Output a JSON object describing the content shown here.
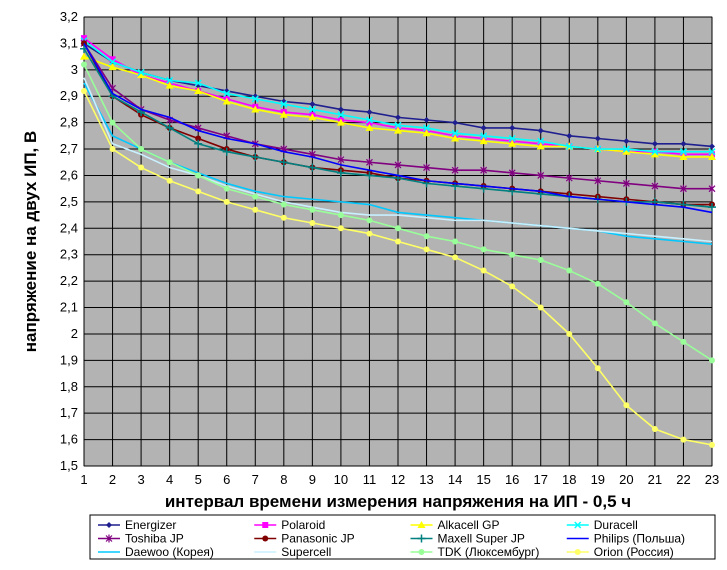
{
  "chart_data": {
    "type": "line",
    "title": "",
    "xlabel": "интервал времени измерения напряжения на ИП - 0,5 ч",
    "ylabel": "напряжение на двух ИП, В",
    "x": [
      1,
      2,
      3,
      4,
      5,
      6,
      7,
      8,
      9,
      10,
      11,
      12,
      13,
      14,
      15,
      16,
      17,
      18,
      19,
      20,
      21,
      22,
      23
    ],
    "xlim": [
      1,
      23
    ],
    "ylim": [
      1.5,
      3.2
    ],
    "yticks": [
      "1,5",
      "1,6",
      "1,7",
      "1,8",
      "1,9",
      "2",
      "2,1",
      "2,2",
      "2,3",
      "2,4",
      "2,5",
      "2,6",
      "2,7",
      "2,8",
      "2,9",
      "3",
      "3,1",
      "3,2"
    ],
    "grid": true,
    "plot_background": "#b3b3b3",
    "legend_position": "bottom",
    "series": [
      {
        "name": "Energizer",
        "color": "#1f1f8f",
        "marker": "diamond",
        "values": [
          3.1,
          3.03,
          2.99,
          2.96,
          2.94,
          2.92,
          2.9,
          2.88,
          2.87,
          2.85,
          2.84,
          2.82,
          2.81,
          2.8,
          2.78,
          2.78,
          2.77,
          2.75,
          2.74,
          2.73,
          2.72,
          2.72,
          2.71
        ]
      },
      {
        "name": "Polaroid",
        "color": "#ff00ff",
        "marker": "square",
        "values": [
          3.12,
          3.04,
          2.98,
          2.95,
          2.92,
          2.89,
          2.86,
          2.84,
          2.83,
          2.81,
          2.8,
          2.78,
          2.77,
          2.75,
          2.74,
          2.73,
          2.72,
          2.71,
          2.7,
          2.69,
          2.69,
          2.68,
          2.68
        ]
      },
      {
        "name": "Alkacell GP",
        "color": "#ffff00",
        "marker": "triangle",
        "values": [
          3.05,
          3.01,
          2.98,
          2.94,
          2.92,
          2.88,
          2.85,
          2.83,
          2.82,
          2.8,
          2.78,
          2.77,
          2.76,
          2.74,
          2.73,
          2.72,
          2.71,
          2.71,
          2.7,
          2.69,
          2.68,
          2.67,
          2.67
        ]
      },
      {
        "name": "Duracell",
        "color": "#00ffff",
        "marker": "x",
        "values": [
          3.11,
          3.03,
          2.99,
          2.96,
          2.95,
          2.91,
          2.89,
          2.87,
          2.85,
          2.83,
          2.81,
          2.79,
          2.78,
          2.76,
          2.75,
          2.74,
          2.73,
          2.71,
          2.7,
          2.7,
          2.69,
          2.69,
          2.69
        ]
      },
      {
        "name": "Toshiba JP",
        "color": "#800080",
        "marker": "star",
        "values": [
          3.1,
          2.93,
          2.85,
          2.81,
          2.78,
          2.75,
          2.72,
          2.7,
          2.68,
          2.66,
          2.65,
          2.64,
          2.63,
          2.62,
          2.62,
          2.61,
          2.6,
          2.59,
          2.58,
          2.57,
          2.56,
          2.55,
          2.55
        ]
      },
      {
        "name": "Panasonic JP",
        "color": "#800000",
        "marker": "circle",
        "values": [
          3.1,
          2.9,
          2.83,
          2.78,
          2.74,
          2.7,
          2.67,
          2.65,
          2.63,
          2.62,
          2.61,
          2.59,
          2.58,
          2.57,
          2.56,
          2.55,
          2.54,
          2.53,
          2.52,
          2.51,
          2.5,
          2.49,
          2.49
        ]
      },
      {
        "name": "Maxell Super JP",
        "color": "#008080",
        "marker": "plus",
        "values": [
          3.08,
          2.9,
          2.84,
          2.78,
          2.72,
          2.69,
          2.67,
          2.65,
          2.63,
          2.61,
          2.6,
          2.59,
          2.57,
          2.56,
          2.55,
          2.54,
          2.53,
          2.52,
          2.51,
          2.5,
          2.5,
          2.49,
          2.48
        ]
      },
      {
        "name": "Philips (Польша)",
        "color": "#0000ff",
        "marker": "none",
        "values": [
          3.1,
          2.91,
          2.85,
          2.82,
          2.77,
          2.74,
          2.72,
          2.69,
          2.67,
          2.64,
          2.62,
          2.6,
          2.58,
          2.57,
          2.56,
          2.55,
          2.54,
          2.52,
          2.51,
          2.5,
          2.49,
          2.48,
          2.46
        ]
      },
      {
        "name": "Daewoo (Корея)",
        "color": "#00c8ff",
        "marker": "none",
        "values": [
          2.95,
          2.75,
          2.7,
          2.65,
          2.61,
          2.57,
          2.54,
          2.52,
          2.51,
          2.5,
          2.49,
          2.46,
          2.45,
          2.44,
          2.43,
          2.42,
          2.41,
          2.4,
          2.39,
          2.37,
          2.36,
          2.35,
          2.34
        ]
      },
      {
        "name": "Supercell",
        "color": "#c8f0ff",
        "marker": "none",
        "values": [
          2.97,
          2.72,
          2.68,
          2.63,
          2.6,
          2.56,
          2.53,
          2.5,
          2.48,
          2.46,
          2.45,
          2.45,
          2.44,
          2.43,
          2.43,
          2.42,
          2.41,
          2.4,
          2.39,
          2.38,
          2.37,
          2.36,
          2.35
        ]
      },
      {
        "name": "TDK (Люксембург)",
        "color": "#99ff99",
        "marker": "circle",
        "values": [
          3.02,
          2.8,
          2.7,
          2.65,
          2.6,
          2.55,
          2.52,
          2.49,
          2.47,
          2.45,
          2.43,
          2.4,
          2.37,
          2.35,
          2.32,
          2.3,
          2.28,
          2.24,
          2.19,
          2.12,
          2.04,
          1.97,
          1.9
        ]
      },
      {
        "name": "Orion (Россия)",
        "color": "#ffff66",
        "marker": "circle",
        "values": [
          2.92,
          2.7,
          2.63,
          2.58,
          2.54,
          2.5,
          2.47,
          2.44,
          2.42,
          2.4,
          2.38,
          2.35,
          2.32,
          2.29,
          2.24,
          2.18,
          2.1,
          2.0,
          1.87,
          1.73,
          1.64,
          1.6,
          1.58
        ]
      }
    ]
  }
}
